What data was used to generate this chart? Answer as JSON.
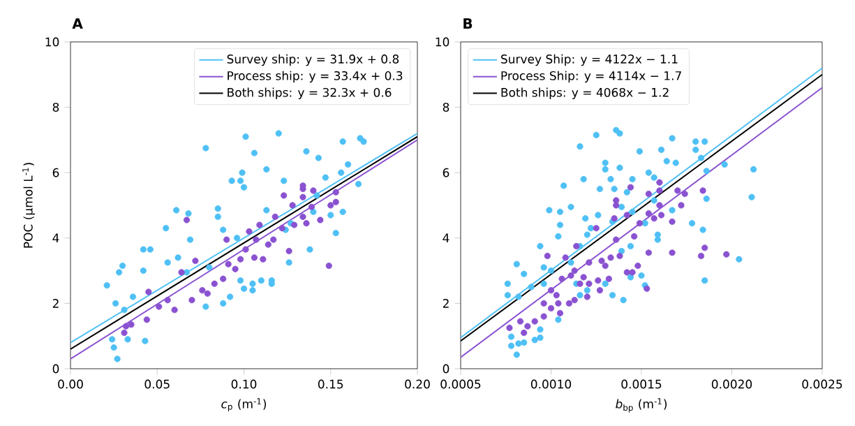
{
  "chart_data": [
    {
      "type": "scatter",
      "title": "A",
      "xlabel": "*c*$_{p}$ (m$^{-1}$)",
      "ylabel": "POC (μmol L$^{-1}$)",
      "xlim": [
        0,
        0.2
      ],
      "ylim": [
        0,
        10
      ],
      "xticks": [
        {
          "value": 0,
          "label": "0.00"
        },
        {
          "value": 0.05,
          "label": "0.05"
        },
        {
          "value": 0.1,
          "label": "0.10"
        },
        {
          "value": 0.15,
          "label": "0.15"
        },
        {
          "value": 0.2,
          "label": "0.20"
        }
      ],
      "yticks": [
        0,
        2,
        4,
        6,
        8,
        10
      ],
      "legend": "top right",
      "series": [
        {
          "marker": "circle",
          "color": "#4fc0f5",
          "x": [
            0.021,
            0.026,
            0.027,
            0.025,
            0.028,
            0.03,
            0.036,
            0.042,
            0.046,
            0.042,
            0.043,
            0.055,
            0.056,
            0.062,
            0.069,
            0.078,
            0.085,
            0.078,
            0.088,
            0.101,
            0.106,
            0.113,
            0.12,
            0.124,
            0.1,
            0.105,
            0.116,
            0.136,
            0.143,
            0.142,
            0.15,
            0.157,
            0.167,
            0.169,
            0.166,
            0.153,
            0.138,
            0.092,
            0.088,
            0.098,
            0.061,
            0.068,
            0.085,
            0.093,
            0.098,
            0.099,
            0.1,
            0.123,
            0.156,
            0.16,
            0.147,
            0.08,
            0.096,
            0.113,
            0.127,
            0.14,
            0.067,
            0.031,
            0.024,
            0.033,
            0.105,
            0.116,
            0.11,
            0.126,
            0.157
          ],
          "values": [
            2.55,
            2.0,
            0.3,
            0.65,
            2.95,
            3.15,
            2.2,
            3.65,
            3.65,
            3.0,
            0.85,
            4.3,
            3.25,
            3.4,
            3.95,
            6.75,
            4.65,
            1.9,
            4.25,
            7.1,
            6.6,
            6.1,
            7.2,
            4.25,
            2.45,
            2.6,
            2.7,
            6.65,
            6.45,
            5.3,
            4.7,
            6.95,
            7.05,
            6.95,
            5.65,
            4.15,
            3.65,
            2.2,
            2.0,
            2.7,
            4.85,
            4.75,
            4.9,
            5.75,
            5.75,
            6.0,
            5.55,
            5.75,
            6.0,
            6.25,
            5.85,
            3.1,
            4.0,
            4.85,
            4.45,
            4.8,
            2.95,
            1.8,
            0.9,
            0.9,
            2.4,
            2.6,
            2.7,
            3.25,
            4.8
          ]
        },
        {
          "marker": "circle",
          "color": "#8a52d1",
          "x": [
            0.031,
            0.032,
            0.035,
            0.044,
            0.045,
            0.051,
            0.056,
            0.06,
            0.067,
            0.064,
            0.07,
            0.072,
            0.076,
            0.079,
            0.083,
            0.088,
            0.09,
            0.091,
            0.095,
            0.098,
            0.101,
            0.103,
            0.106,
            0.107,
            0.109,
            0.111,
            0.114,
            0.117,
            0.118,
            0.122,
            0.123,
            0.126,
            0.128,
            0.129,
            0.134,
            0.134,
            0.134,
            0.136,
            0.14,
            0.144,
            0.149,
            0.15,
            0.153,
            0.153,
            0.139,
            0.134
          ],
          "values": [
            1.1,
            1.3,
            1.35,
            1.5,
            2.35,
            1.9,
            2.1,
            1.8,
            4.55,
            2.95,
            2.1,
            3.3,
            2.4,
            2.3,
            2.6,
            2.75,
            3.95,
            3.2,
            3.05,
            3.35,
            3.65,
            4.2,
            3.4,
            3.95,
            4.4,
            3.35,
            3.8,
            3.95,
            4.65,
            4.3,
            5.3,
            3.6,
            5.0,
            4.4,
            4.65,
            5.6,
            5.5,
            4.45,
            5.45,
            4.55,
            3.15,
            5.0,
            5.4,
            5.1,
            4.95,
            5.25
          ]
        },
        {
          "type": "line",
          "marker": "none",
          "name": "Survey ship: y = 31.9x + 0.8",
          "color": "#4fc0f5",
          "x": [
            0,
            0.2
          ],
          "values": [
            0.8,
            7.2
          ]
        },
        {
          "type": "line",
          "marker": "none",
          "name": "Process ship: y = 33.4x + 0.3",
          "color": "#8a52d1",
          "x": [
            0,
            0.2
          ],
          "values": [
            0.3,
            7.0
          ]
        },
        {
          "type": "line",
          "marker": "none",
          "name": "Both ships: y = 32.3x + 0.6",
          "color": "#000000",
          "x": [
            0,
            0.2
          ],
          "values": [
            0.6,
            7.1
          ]
        }
      ]
    },
    {
      "type": "scatter",
      "title": "B",
      "xlabel": "*b*$_{bp}$ (m$^{-1}$)",
      "xlim": [
        0.0005,
        0.0025
      ],
      "ylim": [
        0,
        10
      ],
      "xticks": [
        {
          "value": 0.0005,
          "label": "0.0005"
        },
        {
          "value": 0.001,
          "label": "0.0010"
        },
        {
          "value": 0.0015,
          "label": "0.0015"
        },
        {
          "value": 0.002,
          "label": "0.0020"
        },
        {
          "value": 0.0025,
          "label": "0.0025"
        }
      ],
      "yticks": [
        0,
        2,
        4,
        6,
        8,
        10
      ],
      "legend": "top left",
      "series": [
        {
          "marker": "circle",
          "color": "#4fc0f5",
          "x": [
            0.00081,
            0.00078,
            0.00082,
            0.00085,
            0.00091,
            0.00094,
            0.00094,
            0.00078,
            0.00076,
            0.00076,
            0.00081,
            0.00085,
            0.00082,
            0.00089,
            0.00094,
            0.00096,
            0.00099,
            0.00105,
            0.00105,
            0.00104,
            0.00107,
            0.00111,
            0.00116,
            0.00118,
            0.00125,
            0.00136,
            0.00138,
            0.0013,
            0.0013,
            0.00138,
            0.00133,
            0.00127,
            0.00135,
            0.00145,
            0.00149,
            0.00154,
            0.00157,
            0.00161,
            0.00164,
            0.00169,
            0.00167,
            0.0018,
            0.0018,
            0.00185,
            0.00183,
            0.00186,
            0.00196,
            0.00212,
            0.00211,
            0.00186,
            0.00178,
            0.00184,
            0.00185,
            0.00204,
            0.00159,
            0.00159,
            0.0015,
            0.00152,
            0.00144,
            0.0014,
            0.00134,
            0.0013,
            0.0012,
            0.00116,
            0.00114,
            0.00104,
            0.00119,
            0.00122,
            0.00126,
            0.0012,
            0.00116,
            0.00134,
            0.00139,
            0.00142,
            0.00145,
            0.00152,
            0.00157,
            0.00167,
            0.00144,
            0.00139,
            0.00111,
            0.001,
            0.00096
          ],
          "values": [
            0.43,
            0.7,
            0.77,
            0.8,
            0.88,
            0.95,
            1.2,
            0.98,
            2.25,
            2.6,
            3.2,
            2.9,
            2.2,
            2.5,
            3.75,
            3.1,
            4.85,
            4.8,
            4.4,
            4.05,
            5.6,
            4.95,
            6.8,
            5.8,
            7.15,
            7.3,
            7.2,
            6.3,
            6.1,
            6.15,
            5.8,
            5.5,
            5.5,
            5.8,
            6.65,
            6.0,
            5.85,
            6.7,
            6.35,
            6.3,
            7.05,
            6.7,
            6.95,
            6.95,
            6.45,
            6.05,
            6.25,
            6.1,
            5.25,
            5.2,
            4.45,
            4.25,
            2.7,
            3.35,
            4.1,
            3.95,
            2.85,
            2.55,
            2.8,
            2.1,
            2.25,
            2.6,
            2.4,
            2.25,
            2.6,
            1.5,
            4.6,
            4.3,
            4.7,
            4.1,
            3.75,
            4.5,
            4.95,
            5.4,
            4.8,
            4.45,
            5.15,
            4.85,
            3.75,
            3.6,
            3.25,
            3.0,
            2.6
          ]
        },
        {
          "marker": "circle",
          "color": "#8a52d1",
          "x": [
            0.00077,
            0.00083,
            0.00085,
            0.00087,
            0.00091,
            0.00096,
            0.00096,
            0.00098,
            0.001,
            0.001,
            0.00103,
            0.00104,
            0.00105,
            0.00106,
            0.00108,
            0.0011,
            0.00111,
            0.00113,
            0.00113,
            0.00114,
            0.00116,
            0.00118,
            0.0012,
            0.00121,
            0.00121,
            0.00125,
            0.00126,
            0.00127,
            0.00128,
            0.0013,
            0.00132,
            0.00133,
            0.00136,
            0.00136,
            0.00135,
            0.00136,
            0.00138,
            0.00142,
            0.00145,
            0.00144,
            0.00142,
            0.00146,
            0.00148,
            0.00149,
            0.00153,
            0.00154,
            0.00154,
            0.00154,
            0.00157,
            0.0016,
            0.0016,
            0.00161,
            0.0016,
            0.00167,
            0.00167,
            0.0017,
            0.00172,
            0.00174,
            0.00183,
            0.00184,
            0.00185,
            0.00197
          ],
          "values": [
            1.25,
            1.45,
            1.1,
            1.3,
            1.45,
            1.6,
            2.0,
            3.45,
            1.85,
            2.4,
            2.25,
            2.0,
            1.7,
            2.75,
            3.4,
            2.0,
            2.85,
            3.0,
            2.1,
            3.75,
            2.6,
            2.8,
            2.2,
            2.6,
            3.25,
            4.3,
            2.7,
            2.4,
            3.3,
            3.15,
            2.75,
            3.4,
            5.15,
            5.0,
            4.6,
            3.95,
            3.45,
            2.95,
            2.95,
            5.55,
            4.7,
            4.05,
            3.15,
            4.45,
            2.45,
            5.35,
            4.75,
            3.55,
            4.6,
            5.7,
            5.45,
            4.7,
            5.0,
            4.5,
            3.55,
            5.45,
            5.0,
            5.35,
            3.45,
            5.45,
            3.7,
            3.5
          ]
        },
        {
          "type": "line",
          "marker": "none",
          "name": "Survey Ship: y = 4122x − 1.1",
          "color": "#4fc0f5",
          "x": [
            0.0005,
            0.0025
          ],
          "values": [
            0.95,
            9.2
          ]
        },
        {
          "type": "line",
          "marker": "none",
          "name": "Process Ship: y = 4114x − 1.7",
          "color": "#8a52d1",
          "x": [
            0.0005,
            0.0025
          ],
          "values": [
            0.35,
            8.6
          ]
        },
        {
          "type": "line",
          "marker": "none",
          "name": "Both ships: y = 4068x − 1.2",
          "color": "#000000",
          "x": [
            0.0005,
            0.0025
          ],
          "values": [
            0.85,
            9.0
          ]
        }
      ]
    }
  ]
}
